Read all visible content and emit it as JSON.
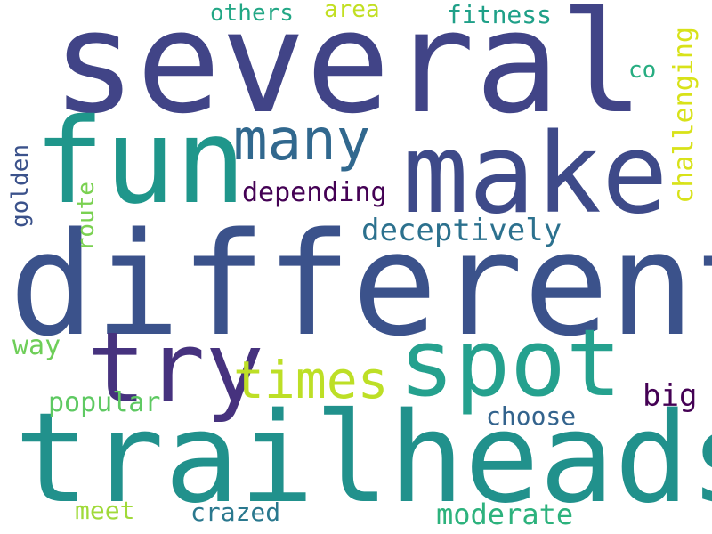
{
  "words": {
    "several": {
      "text": "several",
      "color": "#414487"
    },
    "different": {
      "text": "different",
      "color": "#3b528b"
    },
    "trailheads": {
      "text": "trailheads",
      "color": "#21918c"
    },
    "make": {
      "text": "make",
      "color": "#3e4a89"
    },
    "fun": {
      "text": "fun",
      "color": "#1f968b"
    },
    "try": {
      "text": "try",
      "color": "#46327e"
    },
    "spot": {
      "text": "spot",
      "color": "#25a18e"
    },
    "many": {
      "text": "many",
      "color": "#31688e"
    },
    "times": {
      "text": "times",
      "color": "#bddf26"
    },
    "deceptively": {
      "text": "deceptively",
      "color": "#2c718e"
    },
    "depending": {
      "text": "depending",
      "color": "#440154"
    },
    "challenging": {
      "text": "challenging",
      "color": "#d8e219"
    },
    "fitness": {
      "text": "fitness",
      "color": "#1fa088"
    },
    "others": {
      "text": "others",
      "color": "#22a785"
    },
    "area": {
      "text": "area",
      "color": "#c2df23"
    },
    "co": {
      "text": "co",
      "color": "#27ad81"
    },
    "golden": {
      "text": "golden",
      "color": "#3b528b"
    },
    "route": {
      "text": "route",
      "color": "#7ad151"
    },
    "way": {
      "text": "way",
      "color": "#6ece58"
    },
    "popular": {
      "text": "popular",
      "color": "#5ec962"
    },
    "big": {
      "text": "big",
      "color": "#440154"
    },
    "choose": {
      "text": "choose",
      "color": "#33638d"
    },
    "crazed": {
      "text": "crazed",
      "color": "#2a788e"
    },
    "meet": {
      "text": "meet",
      "color": "#a0da39"
    },
    "moderate": {
      "text": "moderate",
      "color": "#2db27d"
    }
  }
}
